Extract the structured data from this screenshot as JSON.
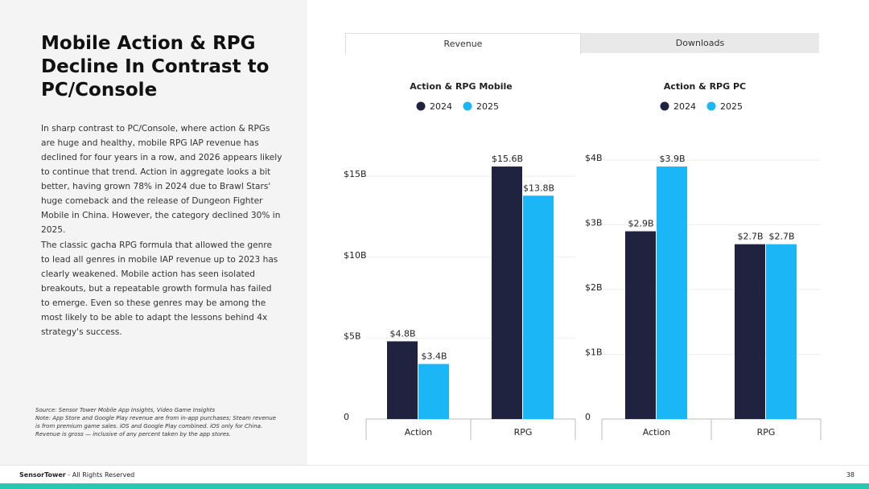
{
  "slide": {
    "title": "Mobile Action & RPG Decline In Contrast to PC/Console",
    "paragraphs": [
      "In sharp contrast to PC/Console, where action & RPGs are huge and healthy, mobile RPG IAP revenue has declined for four years in a row, and 2026 appears likely to continue that trend. Action in aggregate looks a bit better, having grown 78% in 2024 due to Brawl Stars' huge comeback and the release of Dungeon Fighter Mobile in China. However, the category declined 30% in 2025.",
      "The classic gacha RPG formula that allowed the genre to lead all genres in mobile IAP revenue up to 2023 has clearly weakened. Mobile action has seen isolated breakouts, but a repeatable growth formula has failed to emerge. Even so these genres may be among the most likely to be able to adapt the lessons behind 4x strategy's success."
    ],
    "source": "Source: Sensor Tower Mobile App Insights, Video Game Insights",
    "note": "Note: App Store and Google Play revenue are from in-app purchases; Steam revenue is from premium game sales. iOS and Google Play combined. iOS only for China. Revenue is gross — inclusive of any percent taken by the app stores.",
    "tabs": [
      "Revenue",
      "Downloads"
    ],
    "brand": "SensorTower",
    "footer": "- All Rights Reserved",
    "page_number": "38"
  },
  "chart_data": [
    {
      "type": "bar",
      "title": "Action & RPG Mobile",
      "categories": [
        "Action",
        "RPG"
      ],
      "series": [
        {
          "name": "2024",
          "color": "#1f2340",
          "values": [
            4.8,
            15.6
          ],
          "value_labels": [
            "$4.8B",
            "$15.6B"
          ]
        },
        {
          "name": "2025",
          "color": "#1ab6f5",
          "values": [
            3.4,
            13.8
          ],
          "value_labels": [
            "$3.4B",
            "$13.8B"
          ]
        }
      ],
      "ylim": [
        0,
        16
      ],
      "yticks": [
        0,
        {
          "value": 5,
          "label": "$5B"
        },
        {
          "value": 10,
          "label": "$10B"
        },
        {
          "value": 15,
          "label": "$15B"
        }
      ],
      "grid": true
    },
    {
      "type": "bar",
      "title": "Action & RPG PC",
      "categories": [
        "Action",
        "RPG"
      ],
      "series": [
        {
          "name": "2024",
          "color": "#1f2340",
          "values": [
            2.9,
            2.7
          ],
          "value_labels": [
            "$2.9B",
            "$2.7B"
          ]
        },
        {
          "name": "2025",
          "color": "#1ab6f5",
          "values": [
            3.9,
            2.7
          ],
          "value_labels": [
            "$3.9B",
            "$2.7B"
          ]
        }
      ],
      "ylim": [
        0,
        4
      ],
      "yticks": [
        0,
        {
          "value": 1,
          "label": "$1B"
        },
        {
          "value": 2,
          "label": "$2B"
        },
        {
          "value": 3,
          "label": "$3B"
        },
        {
          "value": 4,
          "label": "$4B"
        }
      ],
      "grid": true
    }
  ]
}
